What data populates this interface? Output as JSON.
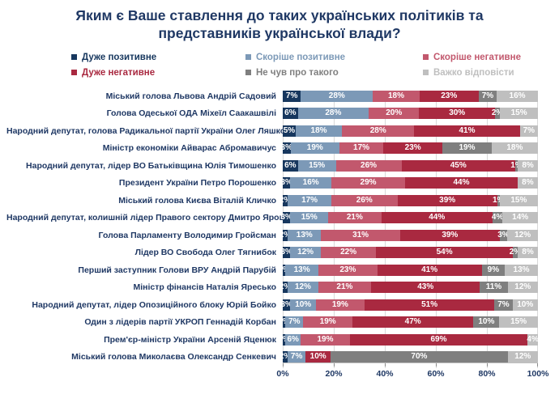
{
  "title": "Яким є Ваше ставлення до таких українських політиків та представників української влади?",
  "colors": {
    "background": "#FFFFFF",
    "title_text": "#1F3864",
    "category_text": "#1F3864",
    "axis_text": "#1F3864",
    "gridline": "#D9D9D9",
    "bar_label_text": "#FFFFFF"
  },
  "chart_data": {
    "type": "bar",
    "stacked": true,
    "orientation": "horizontal",
    "unit": "%",
    "grid": true,
    "legend_position": "top",
    "xlim": [
      0,
      100
    ],
    "x_ticks": [
      "0%",
      "20%",
      "40%",
      "60%",
      "80%",
      "100%"
    ],
    "series_names": [
      "Дуже позитивне",
      "Скоріше позитивне",
      "Скоріше негативне",
      "Дуже негативне",
      "Не чув про такого",
      "Важко відповісти"
    ],
    "series_colors": [
      "#17375E",
      "#7C99B7",
      "#C2586D",
      "#A92940",
      "#7F7F7F",
      "#BFBFBF"
    ],
    "categories": [
      "Міський голова Львова Андрій Садовий",
      "Голова Одеської ОДА Міхеїл Саакашвілі",
      "Народний депутат, голова Радикальної партії України Олег Ляшко",
      "Міністр економіки Айварас Абромавичус",
      "Народний депутат, лідер ВО Батьківщина Юлія Тимошенко",
      "Президент України Петро Порошенко",
      "Міський голова Києва Віталій Кличко",
      "Народний депутат, колишній лідер Правого сектору Дмитро Ярош",
      "Голова Парламенту Володимир Гройсман",
      "Лідер ВО Свобода Олег Тягнибок",
      "Перший заступник Голови ВРУ Андрій Парубій",
      "Міністр фінансів Наталія Яресько",
      "Народний депутат, лідер Опозиційного блоку Юрій Бойко",
      "Один з лідерів партії УКРОП Геннадій Корбан",
      "Прем'єр-міністр України Арсеній Яценюк",
      "Міський голова Миколаєва Олександр Сенкевич"
    ],
    "rows": [
      [
        7,
        28,
        18,
        23,
        7,
        16
      ],
      [
        6,
        28,
        20,
        30,
        2,
        15
      ],
      [
        5,
        18,
        28,
        41,
        0,
        7
      ],
      [
        3,
        19,
        17,
        23,
        19,
        18
      ],
      [
        6,
        15,
        26,
        45,
        1,
        8
      ],
      [
        3,
        16,
        29,
        44,
        0,
        8
      ],
      [
        2,
        17,
        26,
        39,
        1,
        15
      ],
      [
        3,
        15,
        21,
        44,
        4,
        14
      ],
      [
        2,
        13,
        31,
        39,
        3,
        12
      ],
      [
        3,
        12,
        22,
        54,
        2,
        8
      ],
      [
        1,
        13,
        23,
        41,
        9,
        13
      ],
      [
        2,
        12,
        21,
        43,
        11,
        12
      ],
      [
        3,
        10,
        19,
        51,
        7,
        10
      ],
      [
        1,
        7,
        19,
        47,
        10,
        15
      ],
      [
        1,
        6,
        19,
        69,
        0,
        4
      ],
      [
        2,
        7,
        0,
        10,
        70,
        12
      ]
    ]
  }
}
